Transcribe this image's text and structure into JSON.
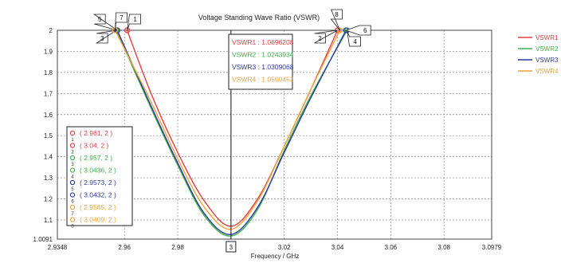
{
  "chart_data": {
    "type": "line",
    "title": "Voltage Standing Wave Ratio (VSWR)",
    "xlabel": "Frequency / GHz",
    "ylabel": "",
    "xlim": [
      2.9348,
      3.0979
    ],
    "ylim": [
      1.0091,
      2
    ],
    "x_ticks": [
      "2.9348",
      "2.96",
      "2.98",
      "3",
      "3.02",
      "3.04",
      "3.06",
      "3.08",
      "3.0979"
    ],
    "x_tick_values": [
      2.9348,
      2.96,
      2.98,
      3.0,
      3.02,
      3.04,
      3.06,
      3.08,
      3.0979
    ],
    "y_ticks": [
      "1.0091",
      "1.1",
      "1.2",
      "1.3",
      "1.4",
      "1.5",
      "1.6",
      "1.7",
      "1.8",
      "1.9",
      "2"
    ],
    "y_tick_values": [
      1.0091,
      1.1,
      1.2,
      1.3,
      1.4,
      1.5,
      1.6,
      1.7,
      1.8,
      1.9,
      2.0
    ],
    "grid": true,
    "legend_position": "right",
    "series": [
      {
        "name": "VSWR1",
        "color": "#e04040",
        "x": [
          2.961,
          2.97,
          2.98,
          2.99,
          3.0,
          3.01,
          3.02,
          3.03,
          3.04
        ],
        "y": [
          2.0,
          1.7,
          1.42,
          1.19,
          1.07,
          1.2,
          1.45,
          1.72,
          2.0
        ]
      },
      {
        "name": "VSWR2",
        "color": "#3cb34a",
        "x": [
          2.957,
          2.97,
          2.98,
          2.99,
          3.0,
          3.01,
          3.02,
          3.03,
          3.0436
        ],
        "y": [
          2.0,
          1.63,
          1.36,
          1.12,
          1.024,
          1.15,
          1.43,
          1.69,
          2.0
        ]
      },
      {
        "name": "VSWR3",
        "color": "#2c3aa0",
        "x": [
          2.9573,
          2.97,
          2.98,
          2.99,
          3.0,
          3.01,
          3.02,
          3.03,
          3.0432
        ],
        "y": [
          2.0,
          1.64,
          1.37,
          1.13,
          1.031,
          1.16,
          1.42,
          1.68,
          2.0
        ]
      },
      {
        "name": "VSWR4",
        "color": "#f2a23c",
        "x": [
          2.9565,
          2.97,
          2.98,
          2.99,
          3.0,
          3.01,
          3.02,
          3.03,
          3.0409
        ],
        "y": [
          2.0,
          1.66,
          1.39,
          1.16,
          1.056,
          1.19,
          1.45,
          1.72,
          2.0
        ]
      }
    ],
    "markers": [
      {
        "label": "1",
        "text": "( 2.961, 2 )",
        "x": 2.961,
        "y": 2,
        "color": "#e04040"
      },
      {
        "label": "2",
        "text": "( 3.04, 2 )",
        "x": 3.04,
        "y": 2,
        "color": "#e04040"
      },
      {
        "label": "3",
        "text": "( 2.957, 2 )",
        "x": 2.957,
        "y": 2,
        "color": "#3cb34a"
      },
      {
        "label": "4",
        "text": "( 3.0436, 2 )",
        "x": 3.0436,
        "y": 2,
        "color": "#3cb34a"
      },
      {
        "label": "5",
        "text": "( 2.9573, 2 )",
        "x": 2.9573,
        "y": 2,
        "color": "#2c3aa0"
      },
      {
        "label": "6",
        "text": "( 3.0432, 2 )",
        "x": 3.0432,
        "y": 2,
        "color": "#2c3aa0"
      },
      {
        "label": "7",
        "text": "( 2.9565, 2 )",
        "x": 2.9565,
        "y": 2,
        "color": "#f2a23c"
      },
      {
        "label": "8",
        "text": "( 3.0409, 2 )",
        "x": 3.0409,
        "y": 2,
        "color": "#f2a23c"
      }
    ],
    "cursor": {
      "x": 3,
      "x_label": "3",
      "readouts": [
        {
          "text": "VSWR1 : 1.0696208",
          "color": "#e04040"
        },
        {
          "text": "VSWR2 : 1.0243934",
          "color": "#3cb34a"
        },
        {
          "text": "VSWR3 : 1.0309068",
          "color": "#2c3aa0"
        },
        {
          "text": "VSWR4 : 1.0560453",
          "color": "#f2a23c"
        }
      ]
    }
  }
}
